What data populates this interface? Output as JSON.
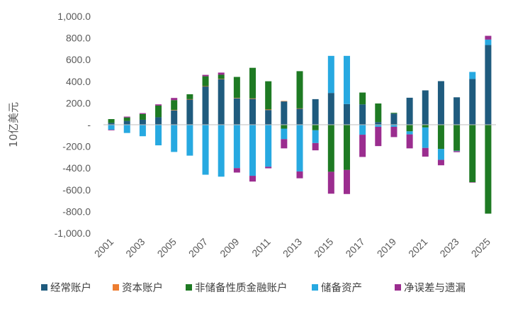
{
  "chart_data": {
    "type": "bar",
    "stacked": true,
    "title": "",
    "xlabel": "",
    "ylabel": "10亿美元",
    "ylim": [
      -1000,
      1000
    ],
    "yticks": [
      1000,
      800,
      600,
      400,
      200,
      0,
      -200,
      -400,
      -600,
      -800,
      -1000
    ],
    "ytick_labels": [
      "1,000.0",
      "800.0",
      "600.0",
      "400.0",
      "200.0",
      "-",
      "-200.0",
      "-400.0",
      "-600.0",
      "-800.0",
      "-1,000.0"
    ],
    "categories": [
      "2001",
      "2002",
      "2003",
      "2004",
      "2005",
      "2006",
      "2007",
      "2008",
      "2009",
      "2010",
      "2011",
      "2012",
      "2013",
      "2014",
      "2015",
      "2016",
      "2017",
      "2018",
      "2019",
      "2020",
      "2021",
      "2022",
      "2023",
      "2024",
      "2025"
    ],
    "xtick_labels": [
      "2001",
      "2003",
      "2005",
      "2007",
      "2009",
      "2011",
      "2013",
      "2015",
      "2017",
      "2019",
      "2021",
      "2023",
      "2025"
    ],
    "grid": false,
    "legend_position": "bottom",
    "series": [
      {
        "name": "经常账户",
        "color": "#1f5b7e",
        "values": [
          17,
          35,
          46,
          69,
          132,
          232,
          353,
          421,
          243,
          238,
          136,
          215,
          148,
          236,
          293,
          191,
          188,
          24,
          103,
          249,
          317,
          402,
          253,
          422,
          735
        ]
      },
      {
        "name": "资本账户",
        "color": "#ed7d31",
        "values": [
          0,
          0,
          0,
          0,
          4,
          4,
          3,
          3,
          4,
          5,
          5,
          4,
          3,
          0,
          0,
          0,
          0,
          0,
          0,
          0,
          0,
          0,
          0,
          0,
          0
        ]
      },
      {
        "name": "非储备性质金融账户",
        "color": "#1e7a23",
        "values": [
          35,
          32,
          53,
          108,
          91,
          45,
          91,
          37,
          194,
          282,
          260,
          -36,
          343,
          -51,
          -434,
          -417,
          109,
          172,
          7,
          -61,
          -25,
          -224,
          -240,
          -530,
          -820
        ]
      },
      {
        "name": "储备资产",
        "color": "#27a9e1",
        "values": [
          -47,
          -76,
          -106,
          -190,
          -251,
          -285,
          -461,
          -479,
          -400,
          -471,
          -388,
          -97,
          -431,
          -118,
          342,
          444,
          -92,
          -19,
          -19,
          -28,
          -189,
          -100,
          -4,
          65,
          50
        ]
      },
      {
        "name": "净误差与遗漏",
        "color": "#9b2d8f",
        "values": [
          -5,
          8,
          8,
          11,
          20,
          0,
          13,
          20,
          -41,
          -53,
          -14,
          -85,
          -63,
          -67,
          -202,
          -222,
          -205,
          -178,
          -95,
          -129,
          -80,
          -50,
          -9,
          -4,
          35
        ]
      }
    ]
  }
}
